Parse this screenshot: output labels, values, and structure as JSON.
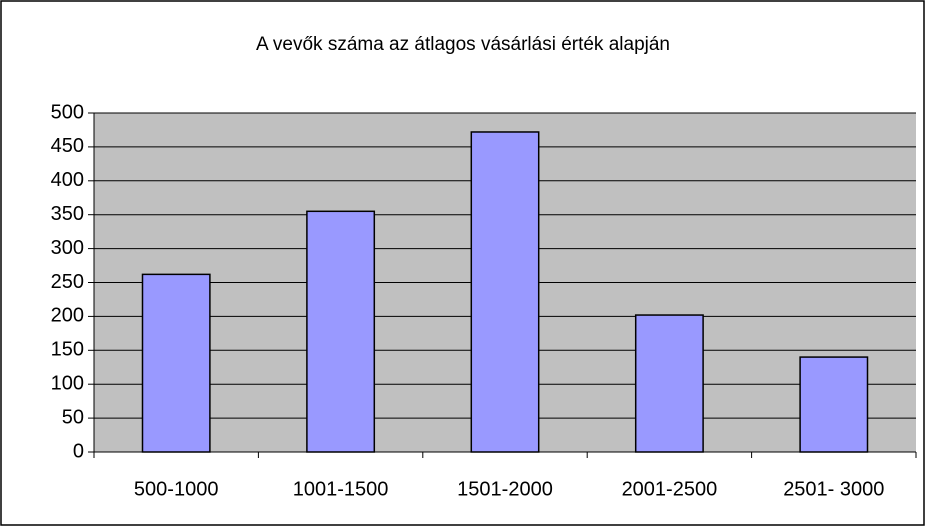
{
  "chart_data": {
    "type": "bar",
    "title": "A vevők száma az átlagos vásárlási érték alapján",
    "categories": [
      "500-1000",
      "1001-1500",
      "1501-2000",
      "2001-2500",
      "2501- 3000"
    ],
    "values": [
      262,
      355,
      472,
      202,
      140
    ],
    "color": "#9999ff",
    "ylim": [
      0,
      500
    ],
    "yticks": [
      0,
      50,
      100,
      150,
      200,
      250,
      300,
      350,
      400,
      450,
      500
    ],
    "grid": true
  }
}
